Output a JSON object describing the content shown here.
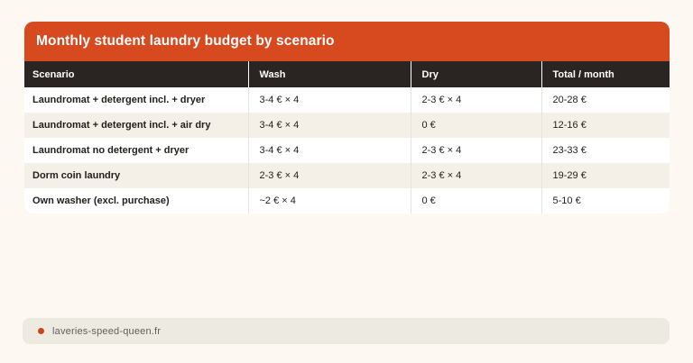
{
  "theme": {
    "accent": "#d7491f",
    "header_bg": "#2a2522",
    "stripe": "#f5f0e7",
    "page_bg": "#fdf9f2",
    "footer_bg": "#edeae2",
    "dot_color": "#c9441f"
  },
  "chart_data": {
    "type": "table",
    "title": "Monthly student laundry budget by scenario",
    "columns": [
      "Scenario",
      "Wash",
      "Dry",
      "Total / month"
    ],
    "rows": [
      [
        "Laundromat + detergent incl. + dryer",
        "3-4 € × 4",
        "2-3 € × 4",
        "20-28 €"
      ],
      [
        "Laundromat + detergent incl. + air dry",
        "3-4 € × 4",
        "0 €",
        "12-16 €"
      ],
      [
        "Laundromat no detergent + dryer",
        "3-4 € × 4",
        "2-3 € × 4",
        "23-33 €"
      ],
      [
        "Dorm coin laundry",
        "2-3 € × 4",
        "2-3 € × 4",
        "19-29 €"
      ],
      [
        "Own washer (excl. purchase)",
        "~2 € × 4",
        "0 €",
        "5-10 €"
      ]
    ],
    "source": "laveries-speed-queen.fr"
  }
}
